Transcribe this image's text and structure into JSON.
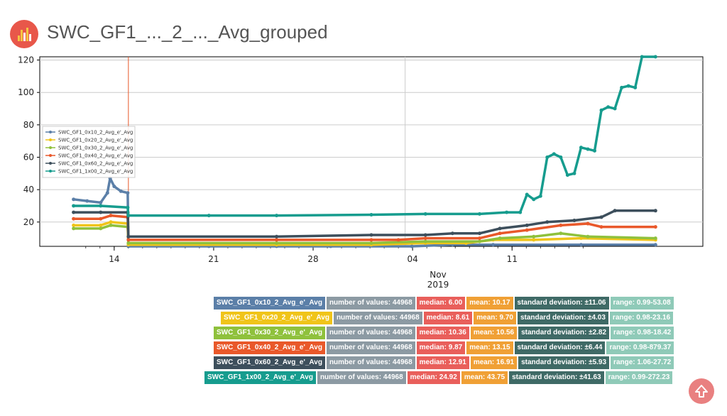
{
  "page": {
    "title": "SWC_GF1_..._2_..._Avg_grouped"
  },
  "chart_data": {
    "type": "line",
    "title": "",
    "xlabel": "",
    "ylabel": "",
    "x_ticks": [
      "14",
      "21",
      "28",
      "04",
      "11"
    ],
    "x_month_label": "Nov",
    "x_year_label": "2019",
    "y_ticks": [
      20,
      40,
      60,
      80,
      100,
      120
    ],
    "ylim": [
      5,
      122
    ],
    "grid": true,
    "legend_position": "left",
    "series": [
      {
        "name": "SWC_GF1_0x10_2_Avg_e'_Avg",
        "color": "#5b7fa8",
        "points": [
          [
            0,
            34
          ],
          [
            2,
            33
          ],
          [
            4,
            32
          ],
          [
            5,
            38
          ],
          [
            5.4,
            47
          ],
          [
            6,
            42
          ],
          [
            7,
            39
          ],
          [
            8,
            38
          ],
          [
            8.1,
            5
          ],
          [
            20,
            5
          ],
          [
            30,
            5
          ],
          [
            38,
            5
          ],
          [
            50,
            5
          ],
          [
            56,
            6
          ],
          [
            62,
            6
          ],
          [
            75,
            6
          ],
          [
            86,
            6
          ]
        ]
      },
      {
        "name": "SWC_GF1_0x20_2_Avg_e'_Avg",
        "color": "#f0c419",
        "points": [
          [
            0,
            18
          ],
          [
            4,
            18
          ],
          [
            5.5,
            20
          ],
          [
            8,
            19
          ],
          [
            8.1,
            6
          ],
          [
            30,
            6
          ],
          [
            44,
            6
          ],
          [
            52,
            7
          ],
          [
            58,
            7
          ],
          [
            62,
            9
          ],
          [
            68,
            9
          ],
          [
            75,
            10
          ],
          [
            86,
            9
          ]
        ]
      },
      {
        "name": "SWC_GF1_0x30_2_Avg_e'_Avg",
        "color": "#8fc13c",
        "points": [
          [
            0,
            16
          ],
          [
            4,
            16
          ],
          [
            5.5,
            18
          ],
          [
            8,
            17
          ],
          [
            8.1,
            7
          ],
          [
            30,
            7
          ],
          [
            44,
            7
          ],
          [
            52,
            8
          ],
          [
            60,
            8
          ],
          [
            63,
            10
          ],
          [
            68,
            11
          ],
          [
            72,
            13
          ],
          [
            76,
            11
          ],
          [
            86,
            10
          ]
        ]
      },
      {
        "name": "SWC_GF1_0x40_2_Avg_e'_Avg",
        "color": "#e9582a",
        "points": [
          [
            0,
            22
          ],
          [
            4,
            22
          ],
          [
            5.5,
            24
          ],
          [
            8,
            23
          ],
          [
            8.1,
            9
          ],
          [
            30,
            9
          ],
          [
            44,
            9
          ],
          [
            48,
            9
          ],
          [
            52,
            10
          ],
          [
            60,
            10
          ],
          [
            63,
            13
          ],
          [
            67,
            15
          ],
          [
            72,
            18
          ],
          [
            76,
            19
          ],
          [
            78,
            17
          ],
          [
            86,
            17
          ]
        ]
      },
      {
        "name": "SWC_GF1_0x60_2_Avg_e'_Avg",
        "color": "#3d4f5c",
        "points": [
          [
            0,
            26
          ],
          [
            4,
            26
          ],
          [
            8,
            26
          ],
          [
            8.1,
            11
          ],
          [
            30,
            11
          ],
          [
            44,
            12
          ],
          [
            52,
            12
          ],
          [
            56,
            13
          ],
          [
            60,
            13
          ],
          [
            63,
            16
          ],
          [
            67,
            18
          ],
          [
            70,
            20
          ],
          [
            74,
            21
          ],
          [
            78,
            23
          ],
          [
            80,
            27
          ],
          [
            86,
            27
          ]
        ]
      },
      {
        "name": "SWC_GF1_1x00_2_Avg_e'_Avg",
        "color": "#169c8e",
        "points": [
          [
            0,
            30
          ],
          [
            4,
            30
          ],
          [
            8,
            29
          ],
          [
            8.1,
            24
          ],
          [
            20,
            24
          ],
          [
            30,
            24
          ],
          [
            44,
            24.5
          ],
          [
            52,
            25
          ],
          [
            60,
            25
          ],
          [
            64,
            26
          ],
          [
            66,
            26
          ],
          [
            67,
            37
          ],
          [
            68,
            34
          ],
          [
            69,
            36
          ],
          [
            70,
            60
          ],
          [
            71,
            62
          ],
          [
            72,
            60
          ],
          [
            73,
            49
          ],
          [
            74,
            50
          ],
          [
            75,
            66
          ],
          [
            76,
            65
          ],
          [
            77,
            64
          ],
          [
            78,
            89
          ],
          [
            79,
            91
          ],
          [
            80,
            90
          ],
          [
            81,
            103
          ],
          [
            82,
            104
          ],
          [
            83,
            103
          ],
          [
            84,
            122
          ],
          [
            86,
            122
          ]
        ]
      }
    ]
  },
  "stats": [
    {
      "name": "SWC_GF1_0x10_2_Avg_e'_Avg",
      "color": "#5b7fa8",
      "count": "number of values: 44968",
      "median": "median: 6.00",
      "mean": "mean: 10.17",
      "std": "standard deviation: ±11.06",
      "range": "range: 0.99-53.08"
    },
    {
      "name": "SWC_GF1_0x20_2_Avg_e'_Avg",
      "color": "#f0c419",
      "count": "number of values: 44968",
      "median": "median: 8.61",
      "mean": "mean: 9.70",
      "std": "standard deviation: ±4.03",
      "range": "range: 0.98-23.16"
    },
    {
      "name": "SWC_GF1_0x30_2_Avg_e'_Avg",
      "color": "#8fc13c",
      "count": "number of values: 44968",
      "median": "median: 10.36",
      "mean": "mean: 10.56",
      "std": "standard deviation: ±2.82",
      "range": "range: 0.98-18.42"
    },
    {
      "name": "SWC_GF1_0x40_2_Avg_e'_Avg",
      "color": "#e9582a",
      "count": "number of values: 44968",
      "median": "median: 9.87",
      "mean": "mean: 13.15",
      "std": "standard deviation: ±6.44",
      "range": "range: 0.98-879.37"
    },
    {
      "name": "SWC_GF1_0x60_2_Avg_e'_Avg",
      "color": "#3d4f5c",
      "count": "number of values: 44968",
      "median": "median: 12.91",
      "mean": "mean: 16.91",
      "std": "standard deviation: ±5.93",
      "range": "range: 1.06-27.72"
    },
    {
      "name": "SWC_GF1_1x00_2_Avg_e'_Avg",
      "color": "#169c8e",
      "count": "number of values: 44968",
      "median": "median: 24.92",
      "mean": "mean: 43.75",
      "std": "standard deviation: ±41.63",
      "range": "range: 0.99-272.23"
    }
  ],
  "icons": {
    "header": "bar-chart-icon",
    "scroll_up": "arrow-up-icon"
  }
}
